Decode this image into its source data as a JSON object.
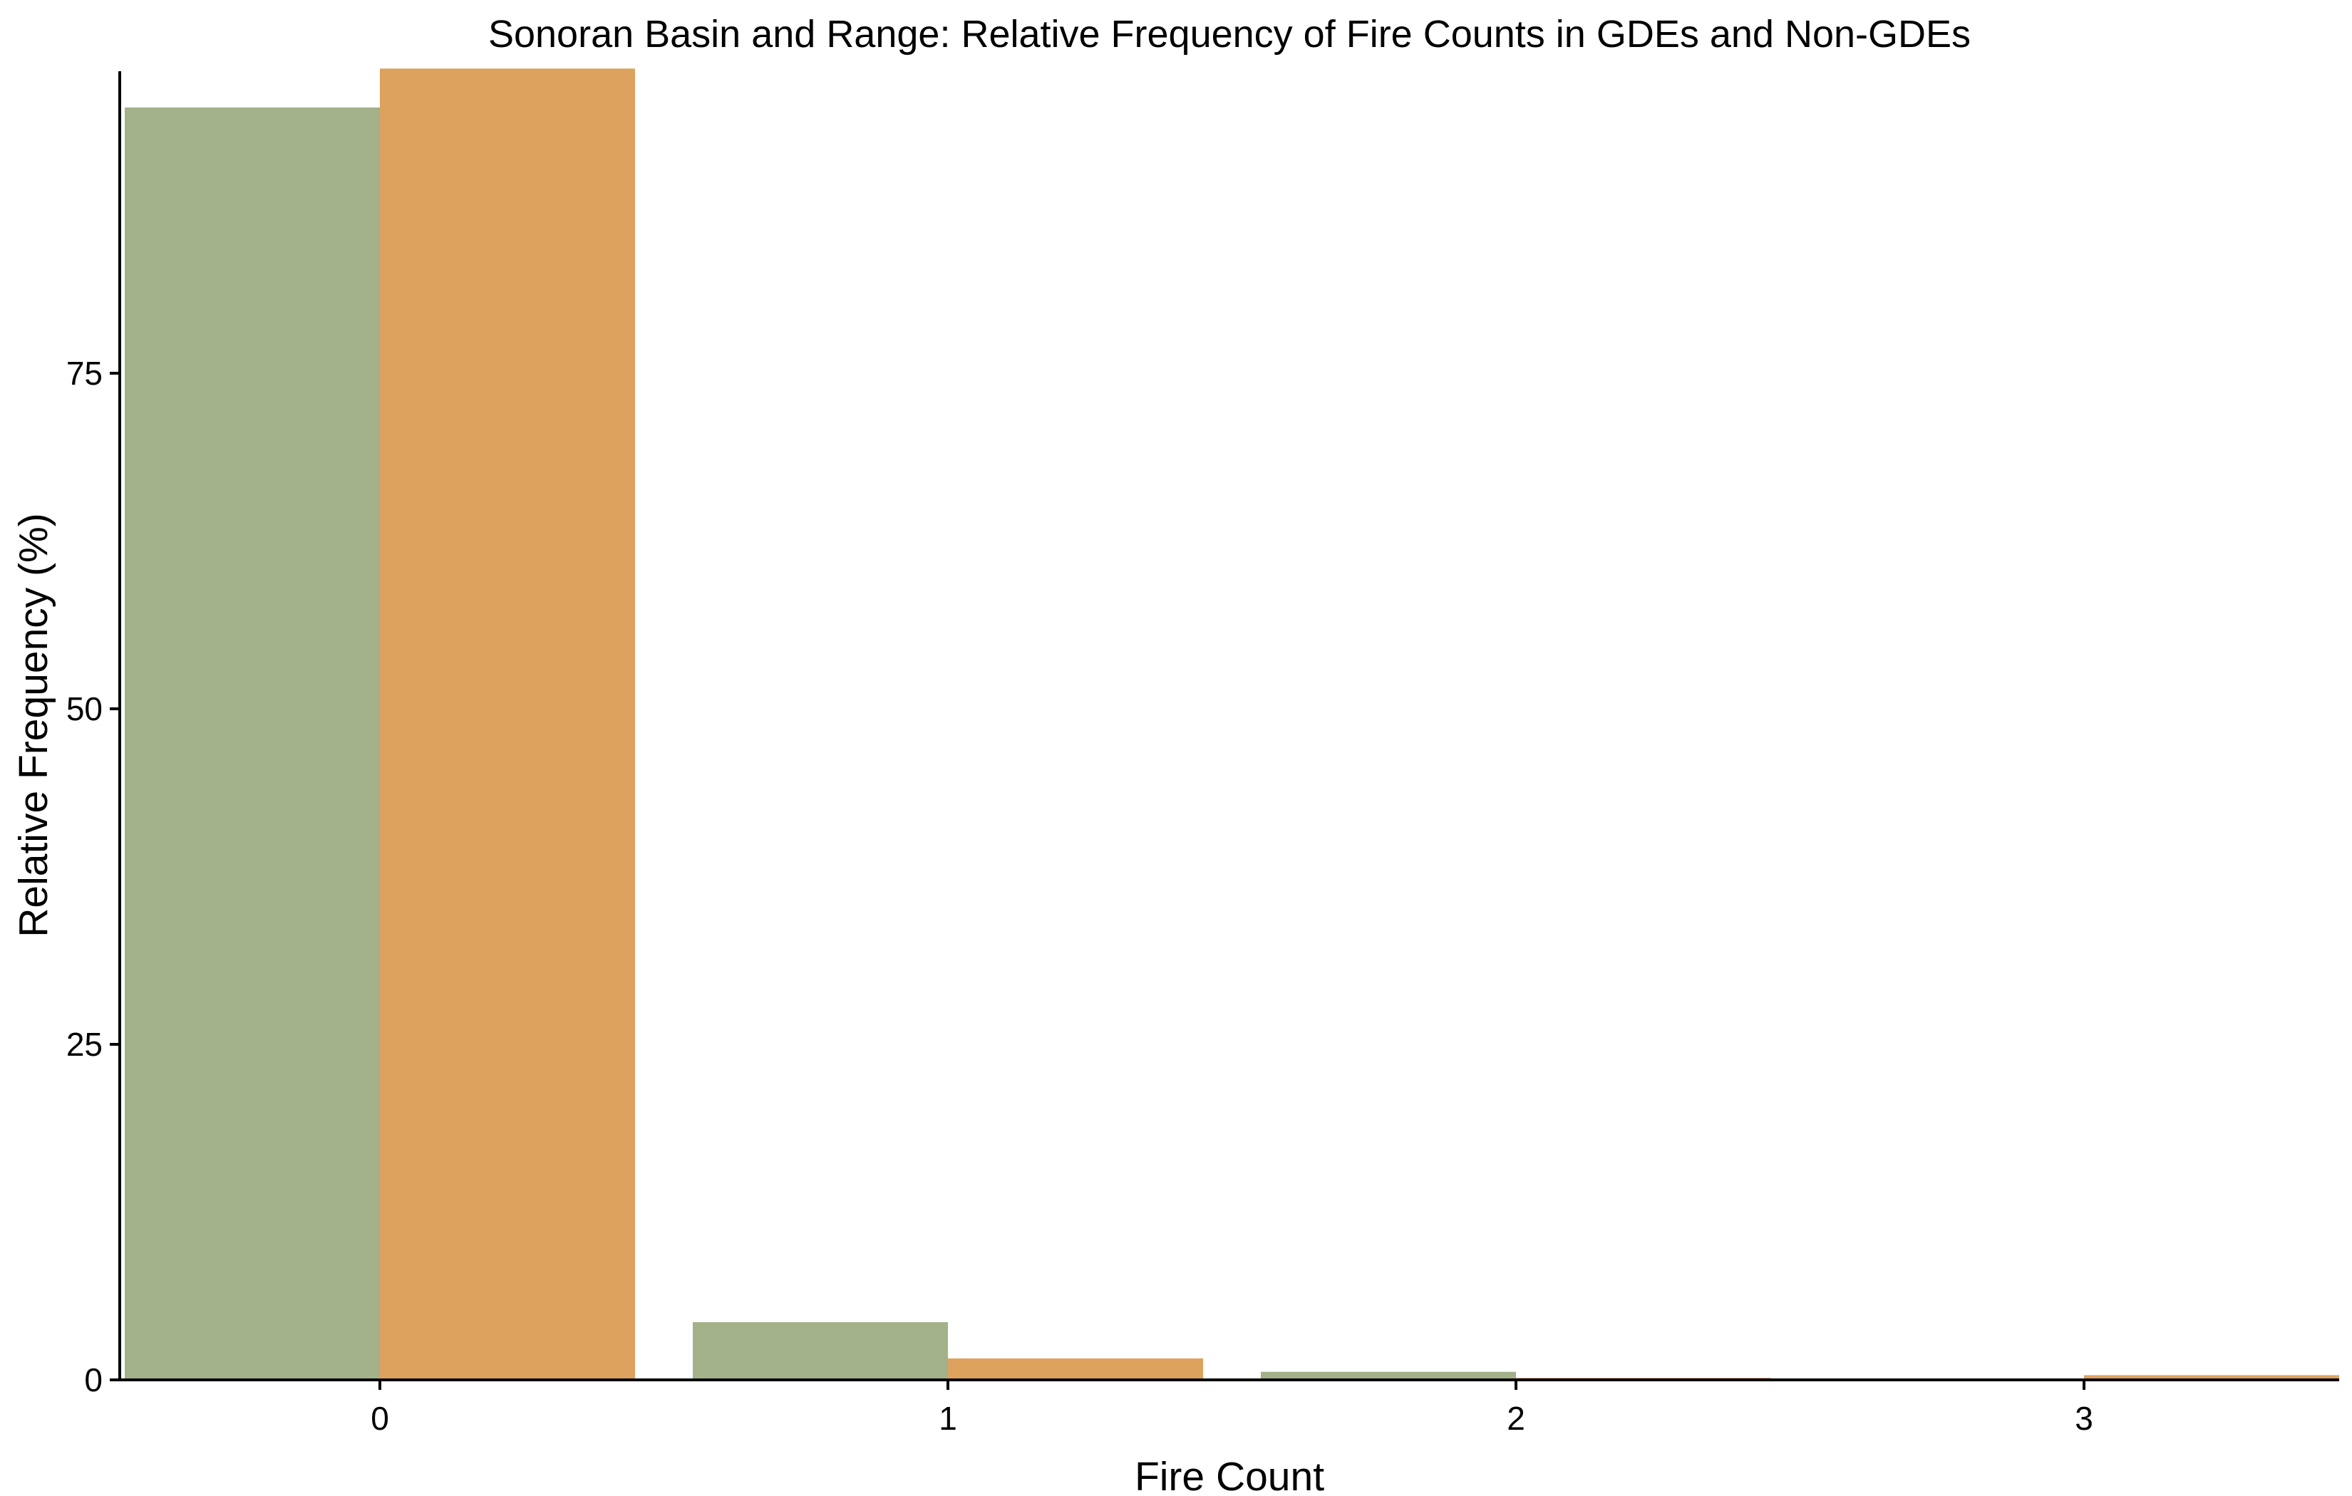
{
  "chart_data": {
    "type": "bar",
    "title": "Sonoran Basin and Range: Relative Frequency of Fire Counts in GDEs and Non-GDEs",
    "xlabel": "Fire Count",
    "ylabel": "Relative Frequency (%)",
    "categories": [
      "0",
      "1",
      "2",
      "3"
    ],
    "yticks": [
      0,
      25,
      50,
      75
    ],
    "ylim": [
      0,
      97.5
    ],
    "series": [
      {
        "key": "series-1",
        "color": "#a2b188",
        "values": [
          94.8,
          4.3,
          0.6,
          0.1
        ]
      },
      {
        "key": "series-2",
        "color": "#dca25e",
        "values": [
          97.7,
          1.6,
          0.15,
          0.35
        ]
      }
    ],
    "grid": false,
    "legend": "none"
  }
}
